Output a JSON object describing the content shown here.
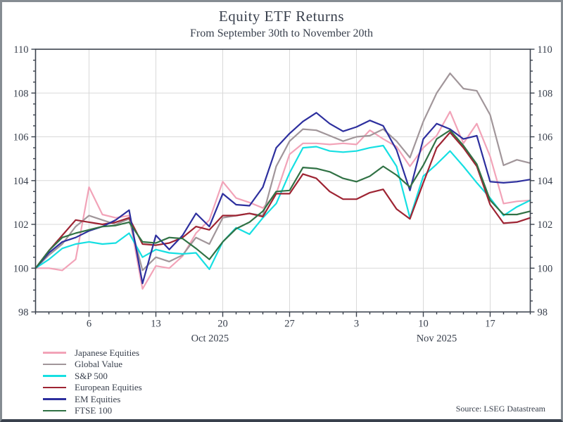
{
  "window": {
    "title": "Equity ETF Returns",
    "subtitle": "From September 30th to November 20th",
    "source": "Source: LSEG Datastream"
  },
  "style": {
    "axis_color": "#3c434e",
    "grid_color": "#d9d9d9",
    "label_color": "#39404d"
  },
  "chart_data": {
    "type": "line",
    "title": "Equity ETF Returns",
    "subtitle": "From September 30th to November 20th",
    "ylim": [
      98,
      110
    ],
    "y_ticks": [
      98,
      100,
      102,
      104,
      106,
      108,
      110
    ],
    "y_minor_step": 0.5,
    "grid": true,
    "legend_position": "bottom-left",
    "x_dates": [
      "Sep 30",
      "Oct 1",
      "Oct 2",
      "Oct 3",
      "Oct 6",
      "Oct 7",
      "Oct 8",
      "Oct 9",
      "Oct 10",
      "Oct 13",
      "Oct 14",
      "Oct 15",
      "Oct 16",
      "Oct 17",
      "Oct 20",
      "Oct 21",
      "Oct 22",
      "Oct 23",
      "Oct 24",
      "Oct 27",
      "Oct 28",
      "Oct 29",
      "Oct 30",
      "Oct 31",
      "Nov 3",
      "Nov 4",
      "Nov 5",
      "Nov 6",
      "Nov 7",
      "Nov 10",
      "Nov 11",
      "Nov 12",
      "Nov 13",
      "Nov 14",
      "Nov 17",
      "Nov 18",
      "Nov 19",
      "Nov 20"
    ],
    "x_tick_indices": [
      4,
      9,
      14,
      19,
      24,
      29,
      34
    ],
    "x_tick_labels": [
      "6",
      "13",
      "20",
      "27",
      "3",
      "10",
      "17"
    ],
    "month_labels": [
      {
        "label": "Oct 2025",
        "index": 13.05
      },
      {
        "label": "Nov 2025",
        "index": 30.0
      }
    ],
    "series": [
      {
        "name": "Japanese Equities",
        "color": "#f2a3b8",
        "values": [
          100.0,
          100.0,
          99.9,
          100.4,
          103.7,
          102.45,
          102.3,
          102.4,
          99.05,
          100.1,
          100.0,
          100.55,
          101.6,
          102.2,
          103.95,
          103.2,
          103.0,
          102.75,
          103.4,
          105.2,
          105.7,
          105.7,
          105.65,
          105.7,
          105.65,
          106.3,
          105.9,
          105.55,
          104.65,
          105.5,
          106.05,
          107.15,
          105.7,
          106.6,
          105.1,
          102.95,
          103.05,
          103.1
        ]
      },
      {
        "name": "Global Value",
        "color": "#a1969a",
        "values": [
          100.0,
          100.6,
          101.1,
          101.9,
          102.4,
          102.2,
          102.0,
          102.25,
          99.9,
          100.5,
          100.3,
          100.6,
          101.4,
          101.1,
          102.3,
          102.4,
          102.5,
          102.4,
          104.65,
          105.8,
          106.35,
          106.3,
          106.05,
          105.8,
          106.0,
          106.05,
          106.35,
          105.8,
          105.05,
          106.7,
          108.0,
          108.9,
          108.2,
          108.1,
          107.0,
          104.7,
          104.95,
          104.8
        ]
      },
      {
        "name": "S&P 500",
        "color": "#16dfe2",
        "values": [
          100.0,
          100.4,
          100.9,
          101.1,
          101.2,
          101.1,
          101.15,
          101.6,
          100.5,
          100.85,
          100.7,
          100.65,
          100.7,
          99.95,
          101.2,
          101.85,
          101.55,
          102.3,
          102.95,
          104.35,
          105.5,
          105.55,
          105.35,
          105.3,
          105.35,
          105.5,
          105.6,
          104.65,
          102.3,
          104.2,
          104.75,
          105.35,
          104.65,
          103.9,
          103.2,
          102.4,
          102.8,
          103.1
        ]
      },
      {
        "name": "European Equities",
        "color": "#9e2433",
        "values": [
          100.0,
          100.8,
          101.5,
          102.2,
          102.1,
          102.0,
          102.1,
          102.3,
          101.1,
          101.05,
          101.15,
          101.4,
          101.9,
          101.75,
          102.4,
          102.4,
          102.5,
          102.35,
          103.4,
          103.4,
          104.3,
          104.1,
          103.5,
          103.15,
          103.15,
          103.45,
          103.6,
          102.7,
          102.25,
          103.9,
          105.5,
          106.2,
          105.5,
          104.65,
          102.9,
          102.05,
          102.1,
          102.3
        ]
      },
      {
        "name": "EM Equities",
        "color": "#2d2f9e",
        "values": [
          100.0,
          100.7,
          101.2,
          101.4,
          101.7,
          101.9,
          102.2,
          102.65,
          99.3,
          101.5,
          100.85,
          101.5,
          102.5,
          101.9,
          103.4,
          102.9,
          102.85,
          103.7,
          105.5,
          106.15,
          106.7,
          107.1,
          106.6,
          106.25,
          106.45,
          106.75,
          106.5,
          105.4,
          103.55,
          105.9,
          106.6,
          106.35,
          105.9,
          106.05,
          103.95,
          103.9,
          103.95,
          104.05
        ]
      },
      {
        "name": "FTSE 100",
        "color": "#317245",
        "values": [
          100.0,
          100.8,
          101.4,
          101.6,
          101.75,
          101.9,
          101.95,
          102.1,
          101.2,
          101.15,
          101.4,
          101.35,
          100.9,
          100.4,
          101.2,
          101.8,
          102.1,
          102.6,
          103.5,
          103.55,
          104.6,
          104.55,
          104.4,
          104.1,
          103.95,
          104.2,
          104.65,
          104.25,
          103.7,
          104.7,
          105.9,
          106.3,
          105.6,
          104.75,
          103.1,
          102.45,
          102.45,
          102.6
        ]
      }
    ]
  }
}
